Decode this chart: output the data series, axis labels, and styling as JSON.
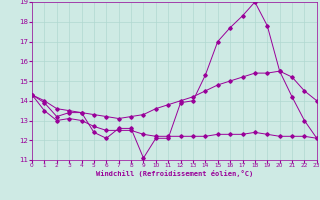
{
  "xlabel": "Windchill (Refroidissement éolien,°C)",
  "xlim": [
    0,
    23
  ],
  "ylim": [
    11,
    19
  ],
  "yticks": [
    11,
    12,
    13,
    14,
    15,
    16,
    17,
    18,
    19
  ],
  "xticks": [
    0,
    1,
    2,
    3,
    4,
    5,
    6,
    7,
    8,
    9,
    10,
    11,
    12,
    13,
    14,
    15,
    16,
    17,
    18,
    19,
    20,
    21,
    22,
    23
  ],
  "background_color": "#ceeae4",
  "grid_color": "#b0d8d0",
  "line_color": "#990099",
  "line1": [
    14.3,
    13.9,
    13.2,
    13.4,
    13.4,
    12.4,
    12.1,
    12.6,
    12.6,
    11.1,
    12.1,
    12.1,
    13.9,
    14.0,
    15.3,
    17.0,
    17.7,
    18.3,
    19.0,
    17.8,
    15.5,
    14.2,
    13.0,
    12.1
  ],
  "line2": [
    14.3,
    13.5,
    13.0,
    13.1,
    13.0,
    12.7,
    12.5,
    12.5,
    12.5,
    12.3,
    12.2,
    12.2,
    12.2,
    12.2,
    12.2,
    12.3,
    12.3,
    12.3,
    12.4,
    12.3,
    12.2,
    12.2,
    12.2,
    12.1
  ],
  "line3": [
    14.3,
    14.0,
    13.6,
    13.5,
    13.4,
    13.3,
    13.2,
    13.1,
    13.2,
    13.3,
    13.6,
    13.8,
    14.0,
    14.2,
    14.5,
    14.8,
    15.0,
    15.2,
    15.4,
    15.4,
    15.5,
    15.2,
    14.5,
    14.0
  ]
}
